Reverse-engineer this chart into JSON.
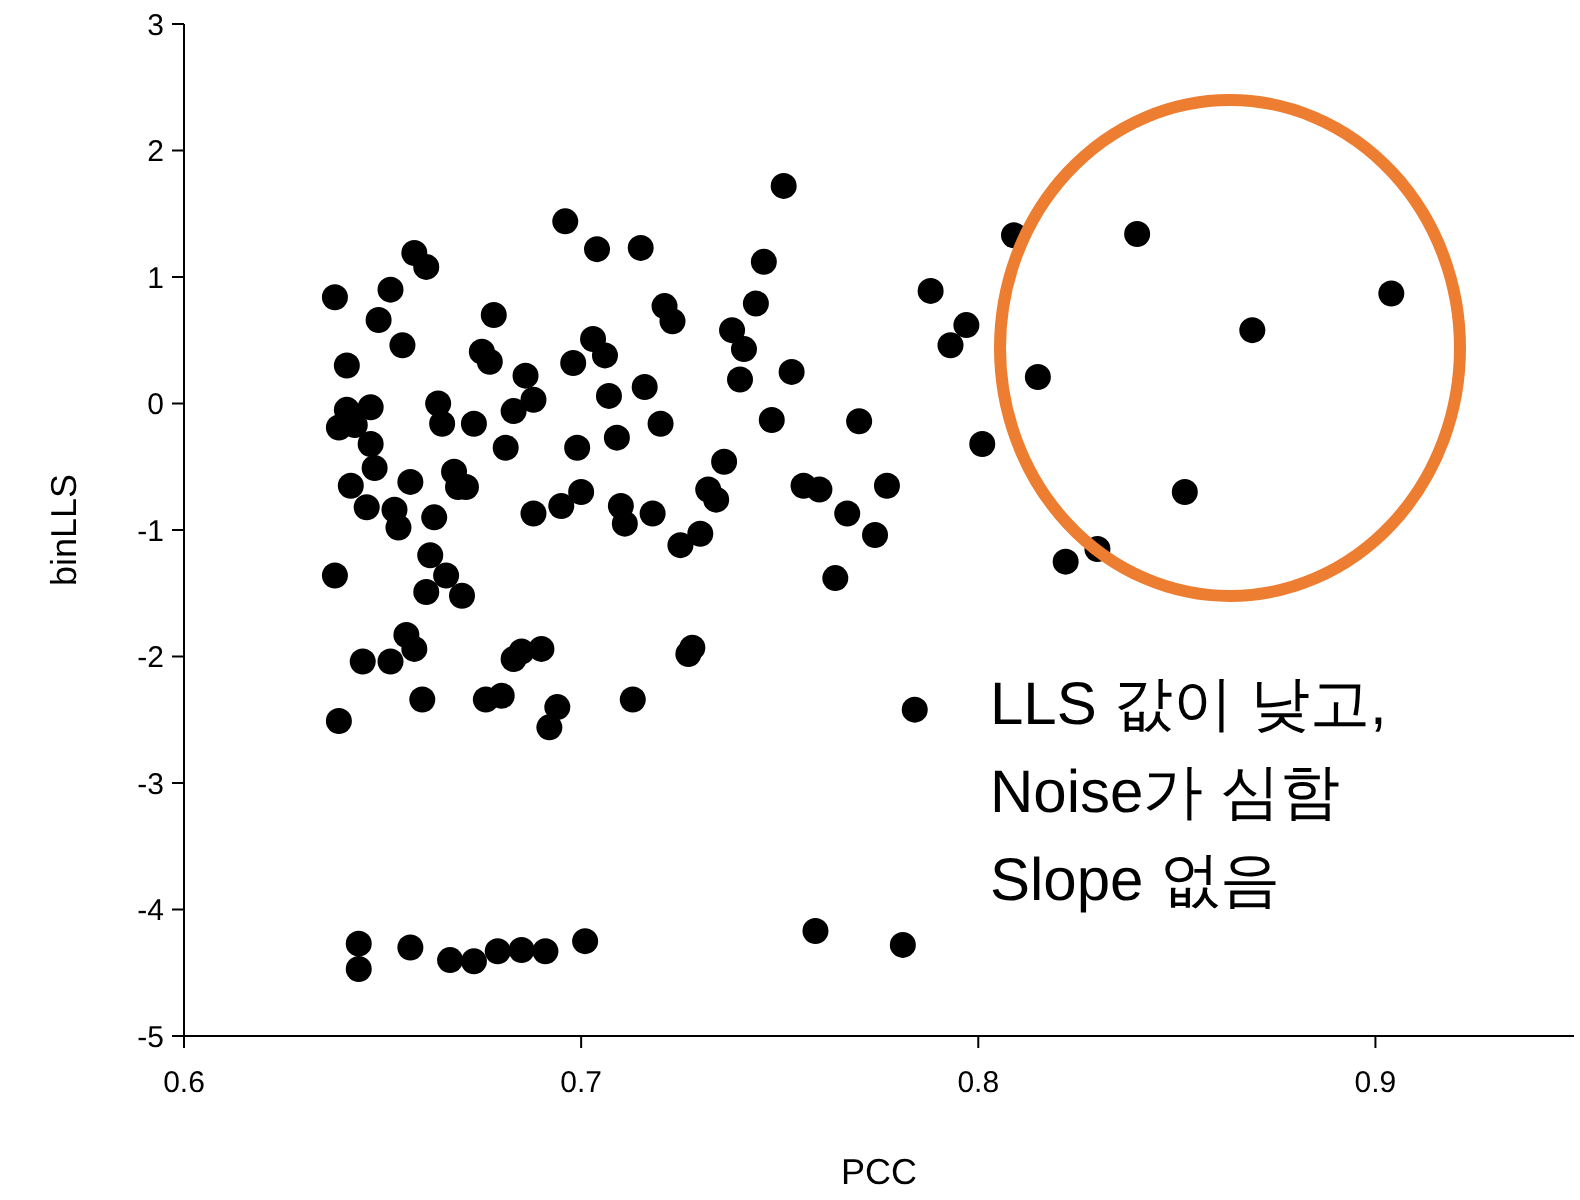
{
  "chart_data": {
    "type": "scatter",
    "xlabel": "PCC",
    "ylabel": "binLLS",
    "xlim": [
      0.6,
      0.95
    ],
    "xticks": [
      0.6,
      0.7,
      0.8,
      0.9
    ],
    "ylim": [
      -5,
      3
    ],
    "yticks": [
      -5,
      -4,
      -3,
      -2,
      -1,
      0,
      1,
      2,
      3
    ],
    "grid": false,
    "marker": "circle",
    "annotations": [
      "LLS 값이 낮고,\nNoise가 심함\nSlope 없음"
    ],
    "series": [
      {
        "color": "#000000",
        "x": [
          0.638,
          0.641,
          0.639,
          0.641,
          0.643,
          0.642,
          0.638,
          0.639,
          0.645,
          0.646,
          0.647,
          0.647,
          0.648,
          0.649,
          0.652,
          0.655,
          0.652,
          0.653,
          0.654,
          0.656,
          0.657,
          0.658,
          0.661,
          0.658,
          0.66,
          0.661,
          0.662,
          0.663,
          0.664,
          0.665,
          0.666,
          0.668,
          0.669,
          0.67,
          0.671,
          0.673,
          0.675,
          0.677,
          0.678,
          0.676,
          0.68,
          0.681,
          0.683,
          0.683,
          0.685,
          0.686,
          0.688,
          0.688,
          0.69,
          0.692,
          0.694,
          0.695,
          0.696,
          0.698,
          0.699,
          0.7,
          0.703,
          0.704,
          0.706,
          0.707,
          0.709,
          0.71,
          0.711,
          0.713,
          0.715,
          0.716,
          0.718,
          0.72,
          0.721,
          0.723,
          0.725,
          0.727,
          0.728,
          0.73,
          0.732,
          0.734,
          0.736,
          0.738,
          0.74,
          0.741,
          0.744,
          0.746,
          0.748,
          0.751,
          0.753,
          0.756,
          0.76,
          0.764,
          0.767,
          0.77,
          0.774,
          0.777,
          0.788,
          0.793,
          0.797,
          0.801,
          0.809,
          0.815,
          0.822,
          0.83,
          0.84,
          0.852,
          0.869,
          0.904,
          0.784,
          0.644,
          0.644,
          0.657,
          0.667,
          0.673,
          0.679,
          0.685,
          0.691,
          0.701,
          0.759,
          0.781
        ],
        "values": [
          0.84,
          0.3,
          -0.19,
          -0.05,
          -0.17,
          -0.65,
          -1.36,
          -2.51,
          -2.04,
          -0.82,
          -0.03,
          -0.32,
          -0.51,
          0.66,
          0.9,
          0.46,
          -2.04,
          -0.84,
          -0.98,
          -1.83,
          -0.62,
          1.19,
          1.08,
          -1.94,
          -2.34,
          -1.49,
          -1.2,
          -0.9,
          0,
          -0.16,
          -1.36,
          -0.54,
          -0.66,
          -1.52,
          -0.66,
          -0.16,
          0.41,
          0.33,
          0.7,
          -2.34,
          -2.31,
          -0.35,
          -0.06,
          -2.02,
          -1.96,
          0.22,
          0.03,
          -0.87,
          -1.94,
          -2.56,
          -2.4,
          -0.81,
          1.44,
          0.32,
          -0.35,
          -0.7,
          0.51,
          1.22,
          0.38,
          0.06,
          -0.27,
          -0.81,
          -0.95,
          -2.34,
          1.23,
          0.13,
          -0.87,
          -0.16,
          0.77,
          0.65,
          -1.12,
          -1.98,
          -1.93,
          -1.03,
          -0.68,
          -0.76,
          -0.46,
          0.58,
          0.19,
          0.43,
          0.79,
          1.12,
          -0.13,
          1.72,
          0.25,
          -0.65,
          -0.68,
          -1.38,
          -0.87,
          -0.14,
          -1.04,
          -0.65,
          0.89,
          0.46,
          0.62,
          -0.32,
          1.33,
          0.21,
          -1.25,
          -1.15,
          1.34,
          -0.7,
          0.58,
          0.87,
          -2.42,
          -4.27,
          -4.47,
          -4.3,
          -4.4,
          -4.41,
          -4.33,
          -4.32,
          -4.33,
          -4.25,
          -4.17,
          -4.28
        ]
      }
    ]
  }
}
